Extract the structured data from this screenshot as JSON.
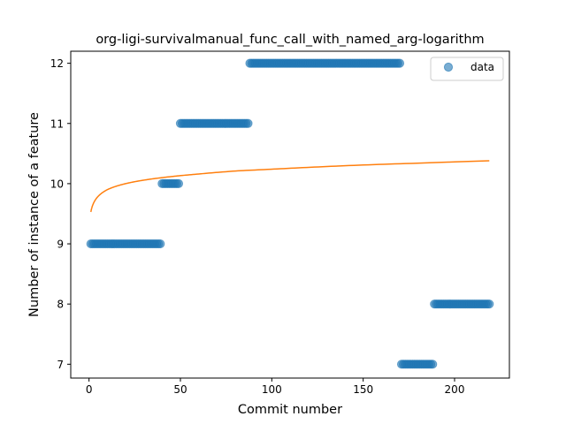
{
  "chart_data": {
    "type": "scatter",
    "title": "org-ligi-survivalmanual_func_call_with_named_arg-logarithm",
    "xlabel": "Commit number",
    "ylabel": "Number of instance of a feature",
    "xlim": [
      -10,
      230
    ],
    "ylim": [
      6.77,
      12.2
    ],
    "xticks": [
      0,
      50,
      100,
      150,
      200
    ],
    "yticks": [
      7,
      8,
      9,
      10,
      11,
      12
    ],
    "grid": false,
    "legend_position": "top-right",
    "series": [
      {
        "name": "data",
        "kind": "scatter",
        "color": "#1f77b4",
        "segments": [
          {
            "x_start": 1,
            "x_end": 39,
            "y": 9
          },
          {
            "x_start": 40,
            "x_end": 49,
            "y": 10
          },
          {
            "x_start": 50,
            "x_end": 87,
            "y": 11
          },
          {
            "x_start": 88,
            "x_end": 170,
            "y": 12
          },
          {
            "x_start": 171,
            "x_end": 188,
            "y": 7
          },
          {
            "x_start": 189,
            "x_end": 219,
            "y": 8
          }
        ]
      },
      {
        "kind": "line",
        "color": "#ff7f0e",
        "model": "logarithmic fit",
        "points": [
          {
            "x": 1,
            "y": 9.53
          },
          {
            "x": 5,
            "y": 9.79
          },
          {
            "x": 10,
            "y": 9.9
          },
          {
            "x": 20,
            "y": 10.0
          },
          {
            "x": 40,
            "y": 10.1
          },
          {
            "x": 60,
            "y": 10.16
          },
          {
            "x": 80,
            "y": 10.21
          },
          {
            "x": 100,
            "y": 10.24
          },
          {
            "x": 120,
            "y": 10.27
          },
          {
            "x": 150,
            "y": 10.31
          },
          {
            "x": 180,
            "y": 10.34
          },
          {
            "x": 219,
            "y": 10.38
          }
        ]
      }
    ]
  }
}
